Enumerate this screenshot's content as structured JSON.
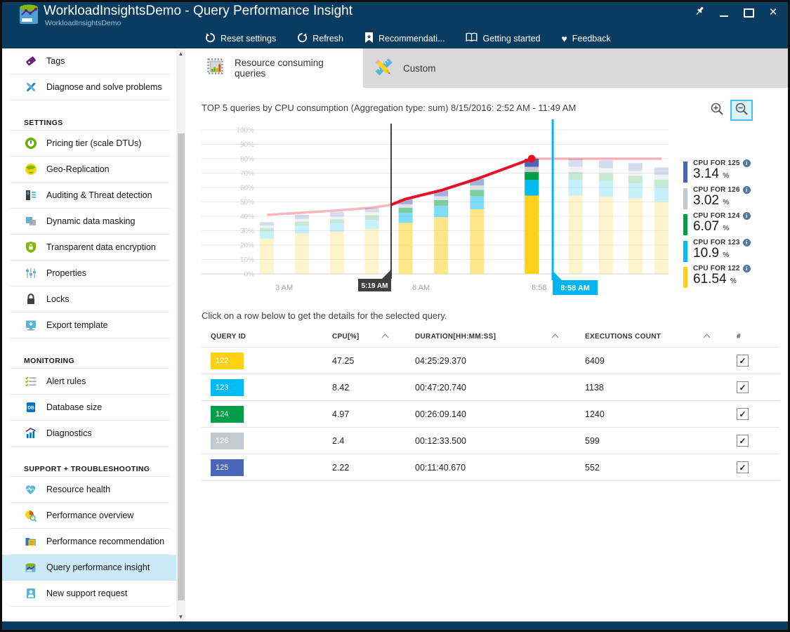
{
  "window": {
    "title": "WorkloadInsightsDemo - Query Performance Insight",
    "subtitle": "WorkloadInsightsDemo",
    "app_icon": "database-chart-icon",
    "controls": [
      {
        "icon": "pin-icon"
      },
      {
        "icon": "minimize-icon"
      },
      {
        "icon": "maximize-icon"
      },
      {
        "icon": "close-icon"
      }
    ]
  },
  "toolbar": {
    "items": [
      {
        "icon": "reset-icon",
        "label": "Reset settings"
      },
      {
        "icon": "refresh-icon",
        "label": "Refresh"
      },
      {
        "icon": "bookmark-icon",
        "label": "Recommendati..."
      },
      {
        "icon": "book-icon",
        "label": "Getting started"
      },
      {
        "icon": "heart-icon",
        "label": "Feedback"
      }
    ]
  },
  "sidebar": {
    "entries": [
      {
        "type": "item",
        "icon": "tag-icon",
        "label": "Tags"
      },
      {
        "type": "item",
        "icon": "tools-icon",
        "label": "Diagnose and solve problems"
      },
      {
        "type": "header",
        "label": "SETTINGS"
      },
      {
        "type": "item",
        "icon": "pricing-icon",
        "label": "Pricing tier (scale DTUs)"
      },
      {
        "type": "item",
        "icon": "globe-icon",
        "label": "Geo-Replication"
      },
      {
        "type": "item",
        "icon": "audit-icon",
        "label": "Auditing & Threat detection"
      },
      {
        "type": "item",
        "icon": "mask-icon",
        "label": "Dynamic data masking"
      },
      {
        "type": "item",
        "icon": "shield-icon",
        "label": "Transparent data encryption"
      },
      {
        "type": "item",
        "icon": "sliders-icon",
        "label": "Properties"
      },
      {
        "type": "item",
        "icon": "lock-icon",
        "label": "Locks"
      },
      {
        "type": "item",
        "icon": "export-icon",
        "label": "Export template"
      },
      {
        "type": "header",
        "label": "MONITORING"
      },
      {
        "type": "item",
        "icon": "alert-icon",
        "label": "Alert rules"
      },
      {
        "type": "item",
        "icon": "database-icon",
        "label": "Database size"
      },
      {
        "type": "item",
        "icon": "diagnostics-icon",
        "label": "Diagnostics"
      },
      {
        "type": "header",
        "label": "SUPPORT + TROUBLESHOOTING"
      },
      {
        "type": "item",
        "icon": "health-icon",
        "label": "Resource health"
      },
      {
        "type": "item",
        "icon": "pie-search-icon",
        "label": "Performance overview"
      },
      {
        "type": "item",
        "icon": "folder-icon",
        "label": "Performance recommendation"
      },
      {
        "type": "item",
        "icon": "qpi-icon",
        "label": "Query performance insight",
        "selected": true
      },
      {
        "type": "item",
        "icon": "person-icon",
        "label": "New support request"
      }
    ]
  },
  "tabs": [
    {
      "icon": "chip-chart-icon",
      "label": "Resource consuming queries",
      "active": true
    },
    {
      "icon": "ruler-pencil-icon",
      "label": "Custom",
      "active": false
    }
  ],
  "main": {
    "chart_title": "TOP 5 queries by CPU consumption (Aggregation type: sum) 8/15/2016: 2:52 AM - 11:49 AM",
    "zoom_controls": [
      {
        "icon": "magnifier-plus-icon",
        "active": false
      },
      {
        "icon": "magnifier-minus-icon",
        "active": true
      }
    ],
    "table_caption": "Click on a row below to get the details for the selected query."
  },
  "chart_data": {
    "type": "bar",
    "stacked": true,
    "title": "TOP 5 queries by CPU consumption (Aggregation type: sum) 8/15/2016: 2:52 AM - 11:49 AM",
    "ylim": [
      0,
      100
    ],
    "ytick_step": 10,
    "ytick_suffix": "%",
    "grid": true,
    "series": [
      {
        "name": "CPU FOR 122",
        "color": "#fdd116"
      },
      {
        "name": "CPU FOR 123",
        "color": "#00bcf2"
      },
      {
        "name": "CPU FOR 124",
        "color": "#009e49"
      },
      {
        "name": "CPU FOR 126",
        "color": "#c3c9ce"
      },
      {
        "name": "CPU FOR 125",
        "color": "#4a66bb"
      }
    ],
    "bars": [
      {
        "x": 0.14,
        "segments": [
          24.5,
          4.9,
          2.5,
          1.6,
          2.5
        ],
        "state": "dim"
      },
      {
        "x": 0.215,
        "segments": [
          27.9,
          5.5,
          2.9,
          1.8,
          2.9
        ],
        "state": "dim"
      },
      {
        "x": 0.29,
        "segments": [
          29.2,
          5.8,
          3.0,
          1.9,
          3.0
        ],
        "state": "dim"
      },
      {
        "x": 0.365,
        "segments": [
          31.3,
          6.2,
          3.2,
          2.1,
          3.2
        ],
        "state": "dim"
      },
      {
        "x": 0.437,
        "segments": [
          35.4,
          7.0,
          3.6,
          2.3,
          3.6
        ],
        "state": "range"
      },
      {
        "x": 0.513,
        "segments": [
          39.4,
          7.8,
          4.1,
          2.6,
          4.1
        ],
        "state": "range"
      },
      {
        "x": 0.59,
        "segments": [
          44.9,
          8.9,
          4.6,
          3.0,
          4.6
        ],
        "state": "range"
      },
      {
        "x": 0.707,
        "segments": [
          54.4,
          10.8,
          5.6,
          3.6,
          5.6
        ],
        "state": "selected"
      },
      {
        "x": 0.801,
        "segments": [
          54.4,
          10.8,
          5.6,
          3.6,
          5.6
        ],
        "state": "dim"
      },
      {
        "x": 0.866,
        "segments": [
          53.7,
          10.7,
          5.5,
          3.5,
          5.5
        ],
        "state": "dim"
      },
      {
        "x": 0.929,
        "segments": [
          52.4,
          10.4,
          5.4,
          3.4,
          5.4
        ],
        "state": "dim"
      },
      {
        "x": 0.985,
        "segments": [
          50.3,
          10.0,
          5.2,
          3.3,
          5.2
        ],
        "state": "dim"
      }
    ],
    "line": {
      "color": "#e81123",
      "points": [
        {
          "x": 0.14,
          "y": 41
        },
        {
          "x": 0.215,
          "y": 42.5
        },
        {
          "x": 0.29,
          "y": 44
        },
        {
          "x": 0.365,
          "y": 46
        },
        {
          "x": 0.406,
          "y": 48
        },
        {
          "x": 0.437,
          "y": 52
        },
        {
          "x": 0.513,
          "y": 58
        },
        {
          "x": 0.59,
          "y": 66
        },
        {
          "x": 0.707,
          "y": 80
        },
        {
          "x": 0.985,
          "y": 80
        }
      ],
      "bright_from_x": 0.406,
      "bright_to_x": 0.707,
      "dot": {
        "x": 0.707,
        "y": 80
      }
    },
    "markers": [
      {
        "label": "5:19 AM",
        "x": 0.406,
        "style": "dark",
        "color": "#3f3f3f"
      },
      {
        "label": "8:58 AM",
        "x": 0.752,
        "style": "cyan",
        "color": "#00b4ef"
      }
    ],
    "x_ticks": [
      {
        "label": "3 AM",
        "x": 0.177
      },
      {
        "label": "6 AM",
        "x": 0.47
      },
      {
        "label": "8:58",
        "x": 0.723
      }
    ],
    "legend_position": "right",
    "legend": [
      {
        "label": "CPU FOR 125",
        "value": "3.14",
        "unit": "%",
        "color": "#4a66bb"
      },
      {
        "label": "CPU FOR 126",
        "value": "3.02",
        "unit": "%",
        "color": "#c3c9ce"
      },
      {
        "label": "CPU FOR 124",
        "value": "6.07",
        "unit": "%",
        "color": "#009e49"
      },
      {
        "label": "CPU FOR 123",
        "value": "10.9",
        "unit": "%",
        "color": "#00bcf2"
      },
      {
        "label": "CPU FOR 122",
        "value": "61.54",
        "unit": "%",
        "color": "#fdd116"
      }
    ]
  },
  "table": {
    "columns": [
      {
        "label": "QUERY ID",
        "sortable": false
      },
      {
        "label": "CPU[%]",
        "sortable": true
      },
      {
        "label": "DURATION[HH:MM:SS]",
        "sortable": true
      },
      {
        "label": "EXECUTIONS COUNT",
        "sortable": true
      },
      {
        "label": "#",
        "sortable": false
      }
    ],
    "rows": [
      {
        "id": "122",
        "color": "#fdd116",
        "cpu": "47.25",
        "duration": "04:25:29.370",
        "executions": "6409",
        "checked": true
      },
      {
        "id": "123",
        "color": "#00bcf2",
        "cpu": "8.42",
        "duration": "00:47:20.740",
        "executions": "1138",
        "checked": true
      },
      {
        "id": "124",
        "color": "#009e49",
        "cpu": "4.97",
        "duration": "00:26:09.140",
        "executions": "1240",
        "checked": true
      },
      {
        "id": "126",
        "color": "#c3c9ce",
        "cpu": "2.4",
        "duration": "00:12:33.500",
        "executions": "599",
        "checked": true
      },
      {
        "id": "125",
        "color": "#4a66bb",
        "cpu": "2.22",
        "duration": "00:11:40.670",
        "executions": "552",
        "checked": true
      }
    ]
  }
}
